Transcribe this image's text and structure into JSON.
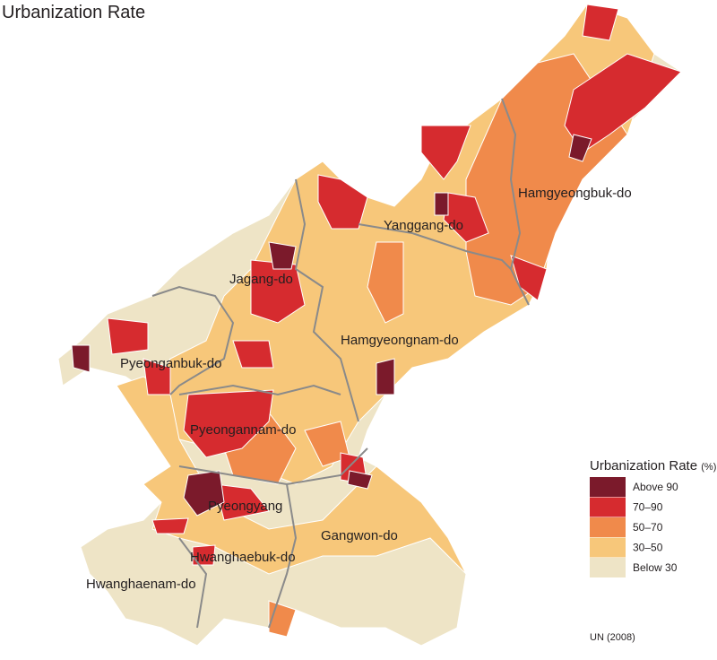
{
  "title": "Urbanization Rate",
  "regions": [
    "Hamgyeongbuk-do",
    "Yanggang-do",
    "Jagang-do",
    "Hamgyeongnam-do",
    "Pyeonganbuk-do",
    "Pyeongannam-do",
    "Pyeongyang",
    "Gangwon-do",
    "Hwanghaebuk-do",
    "Hwanghaenam-do"
  ],
  "legend": {
    "title": "Urbanization Rate",
    "unit": "(%)",
    "items": [
      {
        "label": "Above 90",
        "color": "#7b1a2b"
      },
      {
        "label": "70–90",
        "color": "#d62b2f"
      },
      {
        "label": "50–70",
        "color": "#f08a4b"
      },
      {
        "label": "30–50",
        "color": "#f7c77a"
      },
      {
        "label": "Below 30",
        "color": "#eee4c6"
      }
    ]
  },
  "source": "UN (2008)"
}
